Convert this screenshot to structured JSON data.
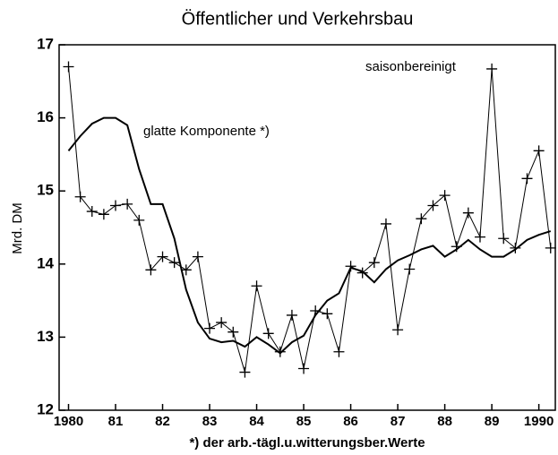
{
  "chart_data": {
    "type": "line",
    "title": "Öffentlicher und Verkehrsbau",
    "ylabel": "Mrd. DM",
    "xlabel": "*) der arb.-tägl.u.witterungsber.Werte",
    "x": [
      1980,
      1980.25,
      1980.5,
      1980.75,
      1981,
      1981.25,
      1981.5,
      1981.75,
      1982,
      1982.25,
      1982.5,
      1982.75,
      1983,
      1983.25,
      1983.5,
      1983.75,
      1984,
      1984.25,
      1984.5,
      1984.75,
      1985,
      1985.25,
      1985.5,
      1985.75,
      1986,
      1986.25,
      1986.5,
      1986.75,
      1987,
      1987.25,
      1987.5,
      1987.75,
      1988,
      1988.25,
      1988.5,
      1988.75,
      1989,
      1989.25,
      1989.5,
      1989.75,
      1990,
      1990.25
    ],
    "series": [
      {
        "name": "saisonbereinigt",
        "color": "#000000",
        "marker": "+",
        "values": [
          16.7,
          14.92,
          14.72,
          14.68,
          14.8,
          14.82,
          14.6,
          13.92,
          14.1,
          14.02,
          13.92,
          14.1,
          13.12,
          13.2,
          13.07,
          12.52,
          13.7,
          13.05,
          12.8,
          13.3,
          12.57,
          13.36,
          13.32,
          12.8,
          13.97,
          13.88,
          14.02,
          14.55,
          13.1,
          13.93,
          14.62,
          14.8,
          14.94,
          14.24,
          14.7,
          14.37,
          16.67,
          14.35,
          14.22,
          15.17,
          15.55,
          14.22
        ]
      },
      {
        "name": "glatte Komponente *)",
        "color": "#000000",
        "values": [
          15.55,
          15.75,
          15.92,
          16.0,
          16.0,
          15.9,
          15.3,
          14.82,
          14.82,
          14.35,
          13.65,
          13.2,
          12.98,
          12.93,
          12.95,
          12.87,
          13.0,
          12.9,
          12.78,
          12.93,
          13.02,
          13.3,
          13.5,
          13.6,
          13.95,
          13.9,
          13.75,
          13.93,
          14.05,
          14.12,
          14.2,
          14.25,
          14.1,
          14.2,
          14.33,
          14.2,
          14.1,
          14.1,
          14.2,
          14.33,
          14.4,
          14.45
        ]
      }
    ],
    "xlim": [
      1979.8,
      1990.35
    ],
    "xticks": [
      1980,
      {
        "value": 1981,
        "label": "81"
      },
      {
        "value": 1982,
        "label": "82"
      },
      {
        "value": 1983,
        "label": "83"
      },
      {
        "value": 1984,
        "label": "84"
      },
      {
        "value": 1985,
        "label": "85"
      },
      {
        "value": 1986,
        "label": "86"
      },
      {
        "value": 1987,
        "label": "87"
      },
      {
        "value": 1988,
        "label": "88"
      },
      {
        "value": 1989,
        "label": "89"
      },
      1990
    ],
    "ylim": [
      12,
      17
    ],
    "yticks": [
      12,
      13,
      14,
      15,
      16,
      17
    ]
  }
}
